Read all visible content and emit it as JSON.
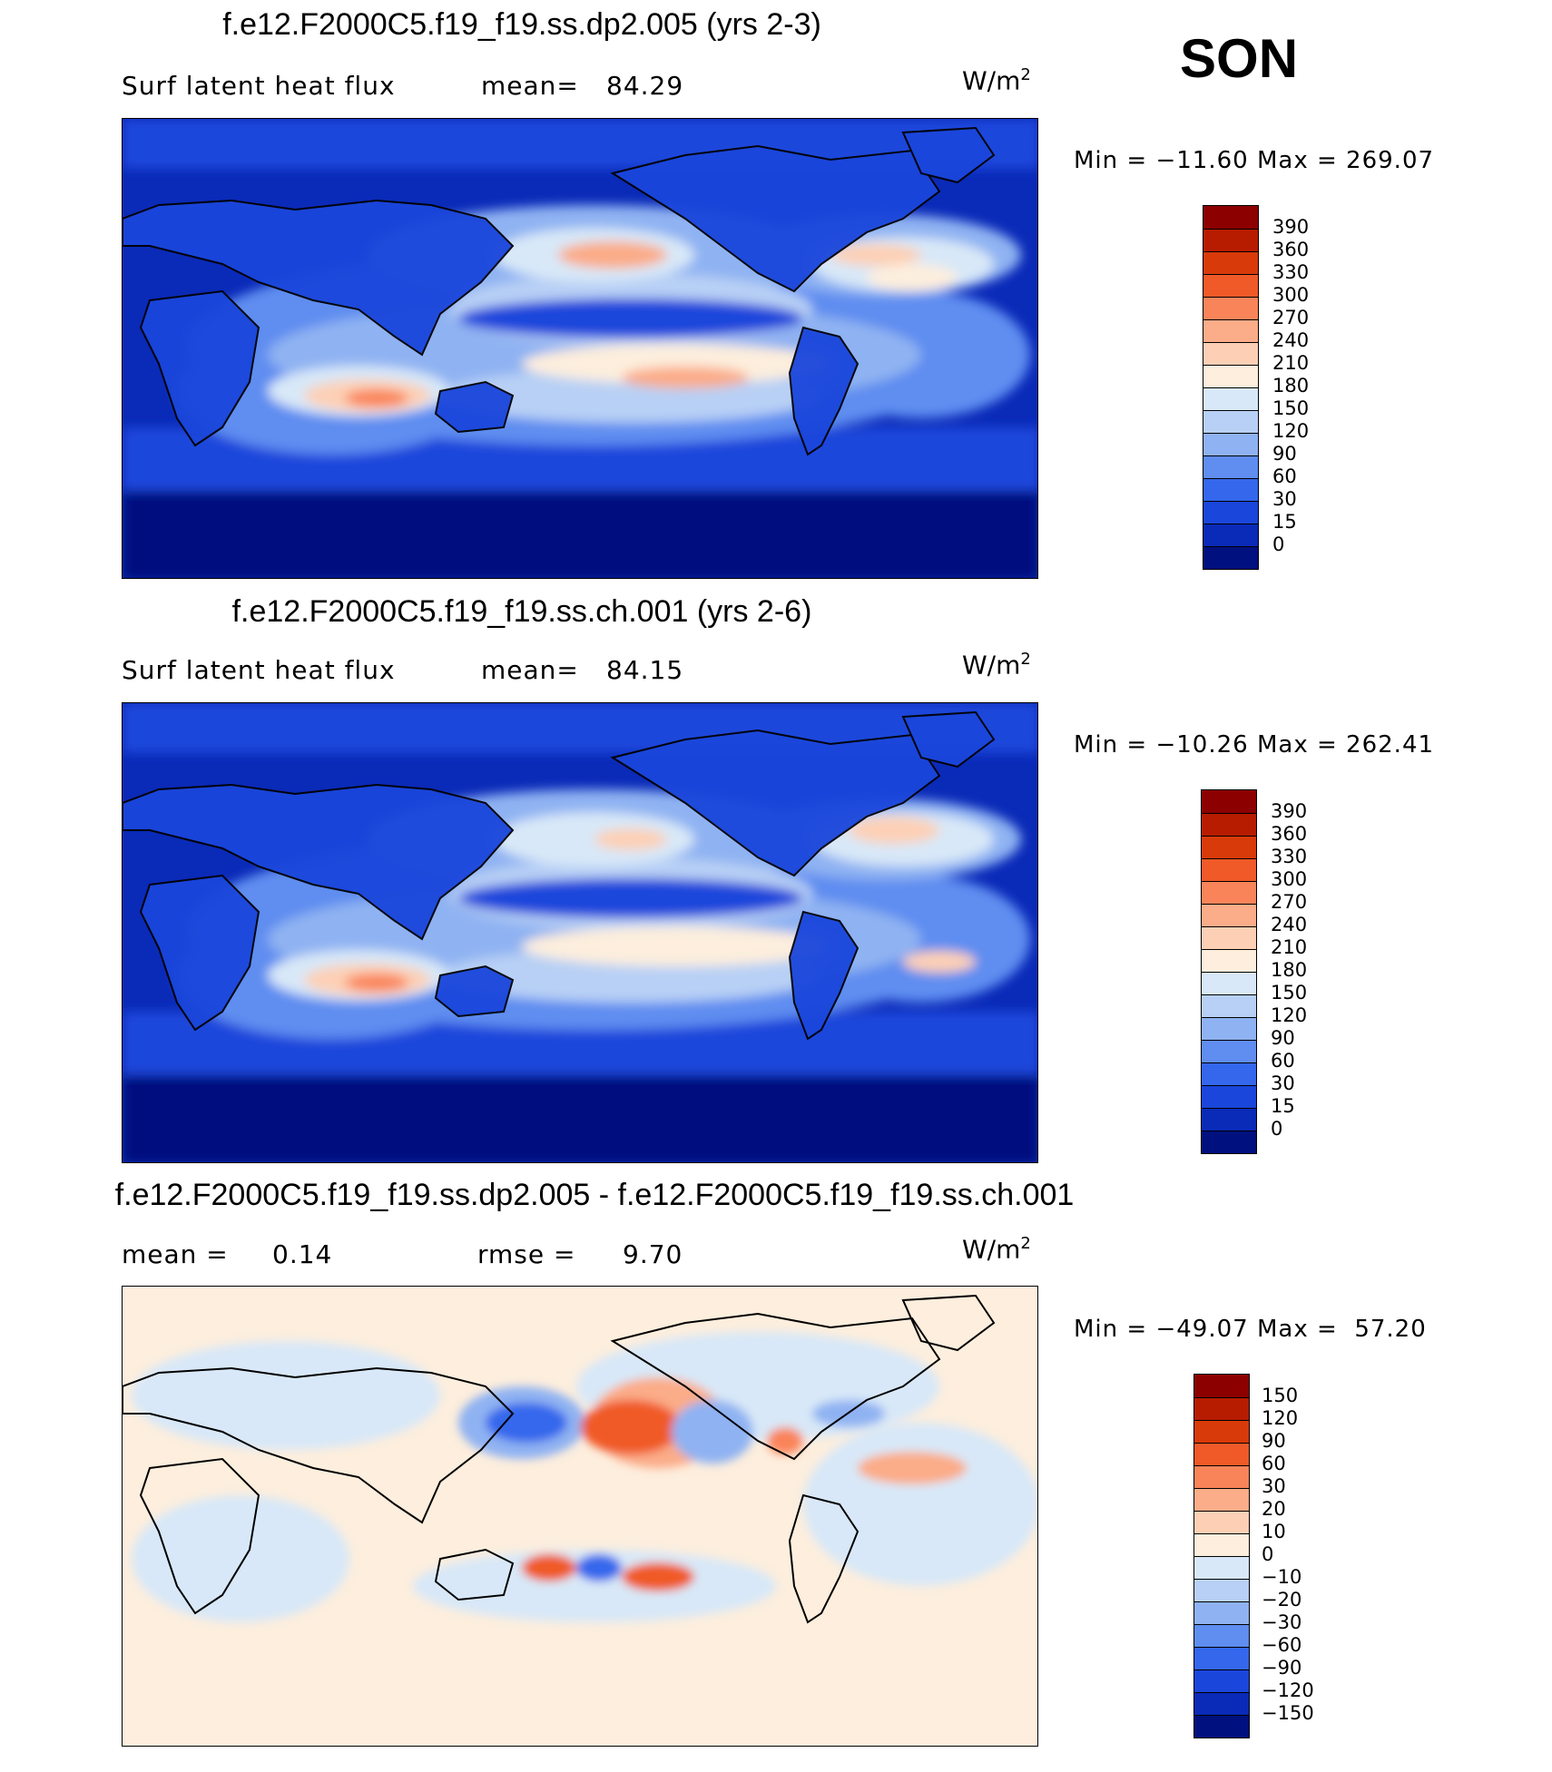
{
  "season": "SON",
  "panels": [
    {
      "title": "f.e12.F2000C5.f19_f19.ss.dp2.005 (yrs 2-3)",
      "left_label": "Surf latent heat flux",
      "right_label": "mean=",
      "right_value": "84.29",
      "units_base": "W/m",
      "units_exp": "2",
      "min_label": "Min",
      "min_value": "−11.60",
      "max_label": "Max",
      "max_value": "269.07",
      "colorbar": {
        "labels": [
          "390",
          "360",
          "330",
          "300",
          "270",
          "240",
          "210",
          "180",
          "150",
          "120",
          "90",
          "60",
          "30",
          "15",
          "0"
        ],
        "colors": [
          "#8c0000",
          "#b71c00",
          "#d93a0a",
          "#f05a28",
          "#f9845a",
          "#fbac88",
          "#fdd0b5",
          "#fdeedd",
          "#d8e8f8",
          "#b8d0f5",
          "#8fb2f2",
          "#5f8df0",
          "#3467ec",
          "#1a46db",
          "#0a2ab8",
          "#00107e"
        ]
      }
    },
    {
      "title": "f.e12.F2000C5.f19_f19.ss.ch.001 (yrs 2-6)",
      "left_label": "Surf latent heat flux",
      "right_label": "mean=",
      "right_value": "84.15",
      "units_base": "W/m",
      "units_exp": "2",
      "min_label": "Min",
      "min_value": "−10.26",
      "max_label": "Max",
      "max_value": "262.41",
      "colorbar": {
        "labels": [
          "390",
          "360",
          "330",
          "300",
          "270",
          "240",
          "210",
          "180",
          "150",
          "120",
          "90",
          "60",
          "30",
          "15",
          "0"
        ],
        "colors": [
          "#8c0000",
          "#b71c00",
          "#d93a0a",
          "#f05a28",
          "#f9845a",
          "#fbac88",
          "#fdd0b5",
          "#fdeedd",
          "#d8e8f8",
          "#b8d0f5",
          "#8fb2f2",
          "#5f8df0",
          "#3467ec",
          "#1a46db",
          "#0a2ab8",
          "#00107e"
        ]
      }
    },
    {
      "title": "f.e12.F2000C5.f19_f19.ss.dp2.005 - f.e12.F2000C5.f19_f19.ss.ch.001",
      "left_label": "mean =",
      "left_value": "0.14",
      "right_label": "rmse =",
      "right_value": "9.70",
      "units_base": "W/m",
      "units_exp": "2",
      "min_label": "Min",
      "min_value": "−49.07",
      "max_label": "Max",
      "max_value": "57.20",
      "colorbar": {
        "labels": [
          "150",
          "120",
          "90",
          "60",
          "30",
          "20",
          "10",
          "0",
          "−10",
          "−20",
          "−30",
          "−60",
          "−90",
          "−120",
          "−150"
        ],
        "colors": [
          "#8c0000",
          "#b71c00",
          "#d93a0a",
          "#f05a28",
          "#f9845a",
          "#fbac88",
          "#fdd0b5",
          "#fdeedd",
          "#d8e8f8",
          "#b8d0f5",
          "#8fb2f2",
          "#5f8df0",
          "#3467ec",
          "#1a46db",
          "#0a2ab8",
          "#00107e"
        ]
      }
    }
  ]
}
